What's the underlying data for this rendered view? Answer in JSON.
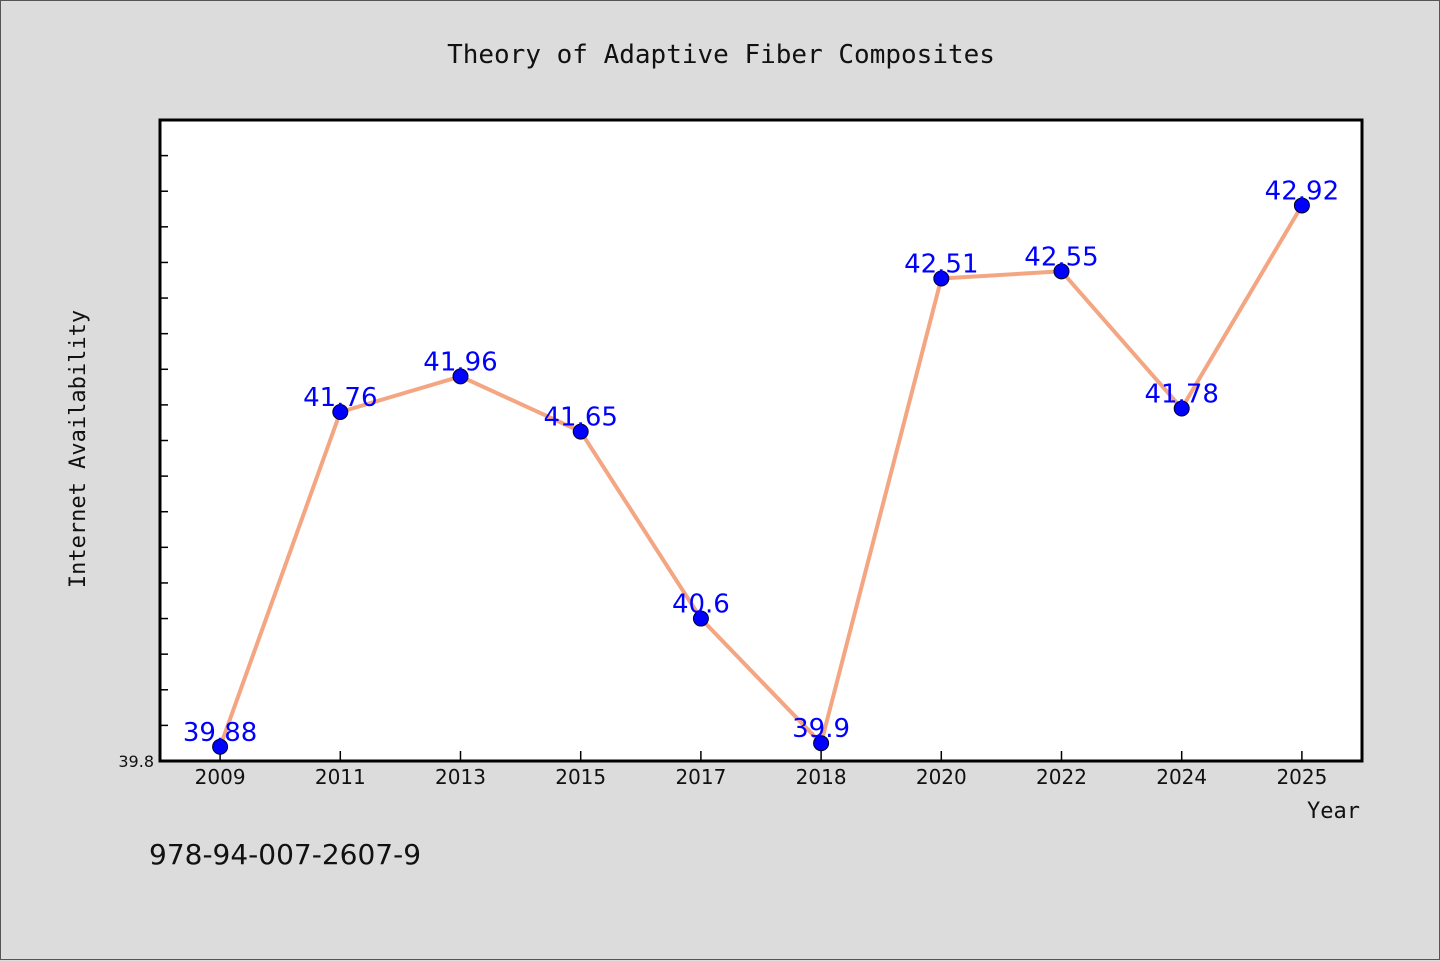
{
  "chart_data": {
    "type": "line",
    "title": "Theory of Adaptive Fiber Composites",
    "xlabel": "Year",
    "ylabel": "Internet Availability",
    "categories": [
      "2009",
      "2011",
      "2013",
      "2015",
      "2017",
      "2018",
      "2020",
      "2022",
      "2024",
      "2025"
    ],
    "series": [
      {
        "values": [
          39.88,
          41.76,
          41.96,
          41.65,
          40.6,
          39.9,
          42.51,
          42.55,
          41.78,
          42.92
        ]
      }
    ],
    "data_labels": [
      "39.88",
      "41.76",
      "41.96",
      "41.65",
      "40.6",
      "39.9",
      "42.51",
      "42.55",
      "41.78",
      "42.92"
    ],
    "ylim": [
      39.8,
      43.4
    ],
    "ytick_label": "39.8",
    "grid": false,
    "colors": {
      "line": "#f4a582",
      "marker": "#0000ff",
      "label": "#0000ff",
      "background": "#dcdcdc",
      "plot_bg": "#ffffff"
    }
  },
  "footer": {
    "isbn": "978-94-007-2607-9"
  }
}
